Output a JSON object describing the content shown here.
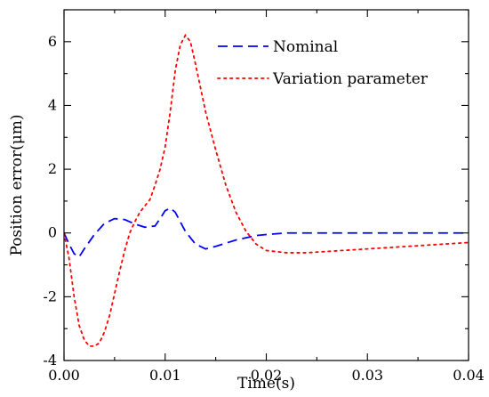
{
  "chart_data": {
    "type": "line",
    "title": "",
    "xlabel": "Time(s)",
    "ylabel": "Position error(μm)",
    "xlim": [
      0.0,
      0.04
    ],
    "ylim": [
      -4,
      7
    ],
    "xticks": [
      0.0,
      0.01,
      0.02,
      0.03,
      0.04
    ],
    "xtick_labels": [
      "0.00",
      "0.01",
      "0.02",
      "0.03",
      "0.04"
    ],
    "yticks": [
      -4,
      -2,
      0,
      2,
      4,
      6
    ],
    "ytick_labels": [
      "-4",
      "-2",
      "0",
      "2",
      "4",
      "6"
    ],
    "grid": false,
    "legend_position": "top-right",
    "series": [
      {
        "name": "Nominal",
        "color": "#0000ff",
        "dash": "dashed",
        "x": [
          0.0,
          0.0005,
          0.001,
          0.0015,
          0.002,
          0.003,
          0.004,
          0.005,
          0.006,
          0.007,
          0.008,
          0.009,
          0.0095,
          0.01,
          0.0105,
          0.011,
          0.0115,
          0.012,
          0.013,
          0.014,
          0.015,
          0.016,
          0.017,
          0.018,
          0.019,
          0.02,
          0.022,
          0.025,
          0.03,
          0.035,
          0.04
        ],
        "y": [
          0.0,
          -0.35,
          -0.65,
          -0.75,
          -0.5,
          -0.05,
          0.3,
          0.45,
          0.42,
          0.28,
          0.18,
          0.22,
          0.45,
          0.7,
          0.78,
          0.65,
          0.35,
          0.05,
          -0.35,
          -0.5,
          -0.42,
          -0.32,
          -0.22,
          -0.15,
          -0.08,
          -0.05,
          0.0,
          0.0,
          0.0,
          0.0,
          0.0
        ]
      },
      {
        "name": "Variation parameter",
        "color": "#ff0000",
        "dash": "dotted",
        "x": [
          0.0,
          0.0005,
          0.001,
          0.0015,
          0.002,
          0.0025,
          0.003,
          0.0035,
          0.004,
          0.0045,
          0.005,
          0.0055,
          0.006,
          0.0065,
          0.007,
          0.0075,
          0.008,
          0.0085,
          0.009,
          0.0095,
          0.01,
          0.0105,
          0.011,
          0.0115,
          0.012,
          0.0125,
          0.013,
          0.014,
          0.015,
          0.016,
          0.017,
          0.018,
          0.019,
          0.02,
          0.022,
          0.024,
          0.026,
          0.03,
          0.035,
          0.04
        ],
        "y": [
          0.0,
          -0.8,
          -2.0,
          -2.9,
          -3.35,
          -3.55,
          -3.55,
          -3.45,
          -3.1,
          -2.6,
          -1.9,
          -1.2,
          -0.55,
          0.0,
          0.35,
          0.65,
          0.85,
          1.05,
          1.5,
          2.0,
          2.7,
          3.8,
          5.1,
          5.9,
          6.2,
          6.0,
          5.3,
          3.8,
          2.6,
          1.5,
          0.65,
          0.05,
          -0.35,
          -0.55,
          -0.62,
          -0.62,
          -0.58,
          -0.5,
          -0.4,
          -0.3
        ]
      }
    ]
  }
}
